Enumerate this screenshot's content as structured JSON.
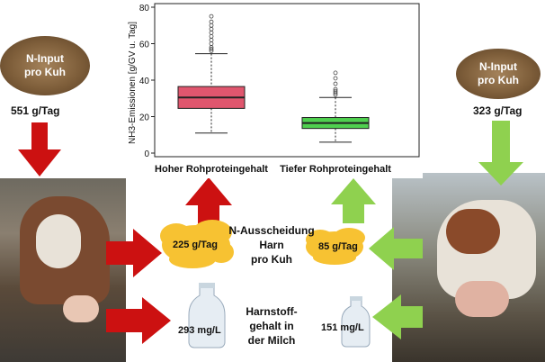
{
  "left": {
    "feed_label_line1": "N-Input",
    "feed_label_line2": "pro Kuh",
    "n_input": "551 g/Tag",
    "urine_n": "225 g/Tag",
    "milk_urea": "293 mg/L",
    "arrow_color": "#cc1111"
  },
  "right": {
    "feed_label_line1": "N-Input",
    "feed_label_line2": "pro Kuh",
    "n_input": "323 g/Tag",
    "urine_n": "85 g/Tag",
    "milk_urea": "151 mg/L",
    "arrow_color": "#8fd14f"
  },
  "center": {
    "urine_line1": "N-Ausscheidung",
    "urine_line2": "Harn",
    "urine_line3": "pro Kuh",
    "milk_line1": "Harnstoff-",
    "milk_line2": "gehalt in",
    "milk_line3": "der Milch"
  },
  "chart_data": {
    "type": "boxplot",
    "ylabel": "NH3-Emissionen [g/GV u. Tag]",
    "ylim": [
      0,
      80
    ],
    "yticks": [
      0,
      20,
      40,
      60,
      80
    ],
    "categories": [
      "Hoher Rohproteingehalt",
      "Tiefer Rohproteingehalt"
    ],
    "boxes": [
      {
        "name": "Hoher Rohproteingehalt",
        "color": "#e0566e",
        "min": 11,
        "q1": 24.5,
        "median": 30.5,
        "q3": 36.5,
        "max": 54.5,
        "outliers": [
          56,
          57,
          58,
          60,
          62,
          64,
          66,
          68,
          70,
          72,
          75
        ]
      },
      {
        "name": "Tiefer Rohproteingehalt",
        "color": "#4fd04f",
        "min": 6,
        "q1": 13.5,
        "median": 16.5,
        "q3": 19.5,
        "max": 30.5,
        "outliers": [
          32,
          33,
          34,
          35,
          38,
          41,
          44
        ]
      }
    ]
  }
}
